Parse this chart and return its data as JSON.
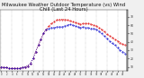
{
  "title": "Milwaukee Weather Outdoor Temperature (vs) Wind Chill (Last 24 Hours)",
  "title_fontsize": 3.8,
  "background_color": "#f0f0f0",
  "plot_bg_color": "#ffffff",
  "grid_color": "#aaaaaa",
  "temp_color": "#dd0000",
  "windchill_color": "#0000cc",
  "ylabel_right_values": [
    70,
    60,
    50,
    40,
    30,
    20,
    10
  ],
  "ylim": [
    5,
    78
  ],
  "num_points": 48,
  "temp_data": [
    10,
    9,
    9,
    8,
    8,
    8,
    8,
    8,
    9,
    10,
    11,
    14,
    20,
    28,
    36,
    43,
    50,
    55,
    59,
    62,
    64,
    66,
    67,
    67,
    67,
    66,
    65,
    64,
    63,
    62,
    61,
    62,
    62,
    62,
    61,
    60,
    59,
    57,
    55,
    52,
    49,
    47,
    45,
    43,
    41,
    39,
    37,
    36
  ],
  "windchill_data": [
    10,
    9,
    9,
    8,
    8,
    8,
    8,
    8,
    9,
    10,
    11,
    14,
    20,
    28,
    36,
    43,
    50,
    55,
    56,
    57,
    57,
    58,
    58,
    58,
    59,
    60,
    61,
    60,
    59,
    58,
    57,
    58,
    57,
    57,
    56,
    56,
    55,
    53,
    50,
    47,
    44,
    41,
    38,
    36,
    33,
    30,
    28,
    26
  ]
}
